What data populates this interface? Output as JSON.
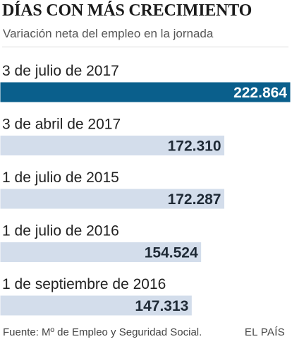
{
  "header": {
    "title": "DÍAS CON MÁS CRECIMIENTO",
    "subtitle": "Variación neta del empleo en la jornada"
  },
  "footer": {
    "source": "Fuente: Mº de Empleo y Seguridad Social.",
    "brand": "EL PAÍS"
  },
  "colors": {
    "highlight_bar": "#0a5f8c",
    "bar": "#d3ddeb",
    "bar_border": "#ffffff",
    "highlight_text": "#ffffff",
    "text": "#1f2a36"
  },
  "chart_data": {
    "type": "bar",
    "orientation": "horizontal",
    "categories": [
      "3 de julio de 2017",
      "3 de abril de 2017",
      "1 de julio de 2015",
      "1 de julio de 2016",
      "1 de septiembre de 2016"
    ],
    "values": [
      222864,
      172310,
      172287,
      154524,
      147313
    ],
    "value_labels": [
      "222.864",
      "172.310",
      "172.287",
      "154.524",
      "147.313"
    ],
    "highlight_index": 0
  }
}
